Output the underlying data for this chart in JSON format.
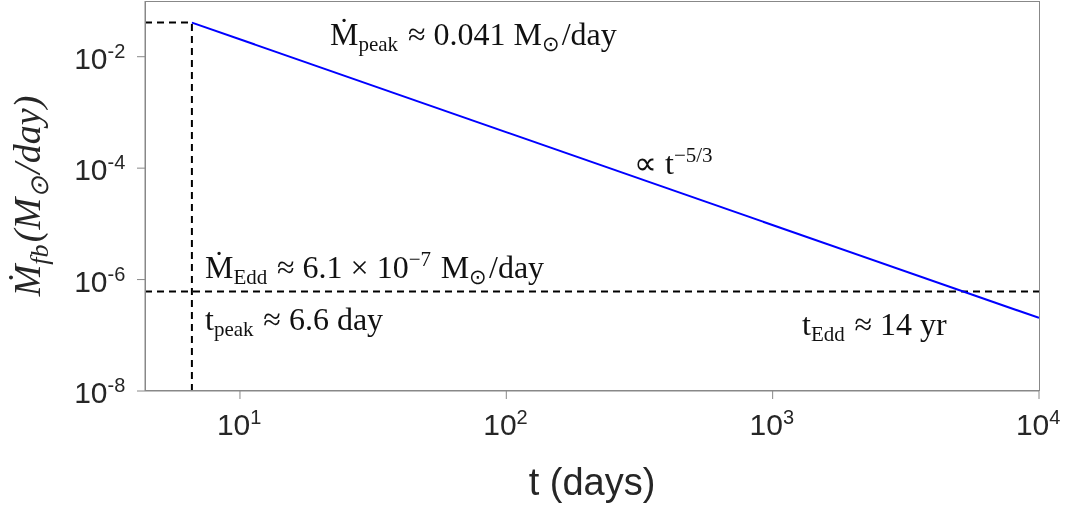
{
  "chart_data": {
    "type": "line",
    "xlabel": "t (days)",
    "ylabel": "Ṁ$_{fb}$(M$_{⊙}$/day)",
    "log": "xy",
    "marker": "none",
    "xlim": [
      4.4,
      10000
    ],
    "xticks": [
      {
        "value": 10,
        "label": "10$^{1}$"
      },
      {
        "value": 100,
        "label": "10$^{2}$"
      },
      {
        "value": 1000,
        "label": "10$^{3}$"
      },
      {
        "value": 10000,
        "label": "10$^{4}$"
      }
    ],
    "ylim": [
      1e-08,
      0.1
    ],
    "yticks": [
      {
        "value": 1e-08,
        "label": "10$^{-8}$"
      },
      {
        "value": 1e-06,
        "label": "10$^{-6}$"
      },
      {
        "value": 0.0001,
        "label": "10$^{-4}$"
      },
      {
        "value": 0.01,
        "label": "10$^{-2}$"
      }
    ],
    "series": [
      {
        "color": "#0000ff",
        "line_style": "solid",
        "x": [
          6.6,
          10000
        ],
        "values": [
          0.041,
          2.05e-07
        ]
      },
      {
        "color": "#000000",
        "line_style": "dashed",
        "x": [
          4.4,
          6.6
        ],
        "values": [
          0.041,
          0.041
        ]
      },
      {
        "color": "#000000",
        "line_style": "dashed",
        "x": [
          6.6,
          6.6
        ],
        "values": [
          1e-08,
          0.041
        ]
      }
    ],
    "ref_lines": [
      {
        "axis": "y",
        "value": 6.1e-07,
        "color": "#000000",
        "line_style": "dashed"
      }
    ],
    "annotations": [
      "Ṁ$_{peak}$ ≈ 0.041 M$_{⊙}$/day",
      "∝ t$^{−5/3}$",
      "Ṁ$_{Edd}$ ≈ 6.1 × 10$^{−7}$ M$_{⊙}$/day",
      "t$_{peak}$ ≈ 6.6 day",
      "t$_{Edd}$ ≈ 14 yr"
    ]
  }
}
